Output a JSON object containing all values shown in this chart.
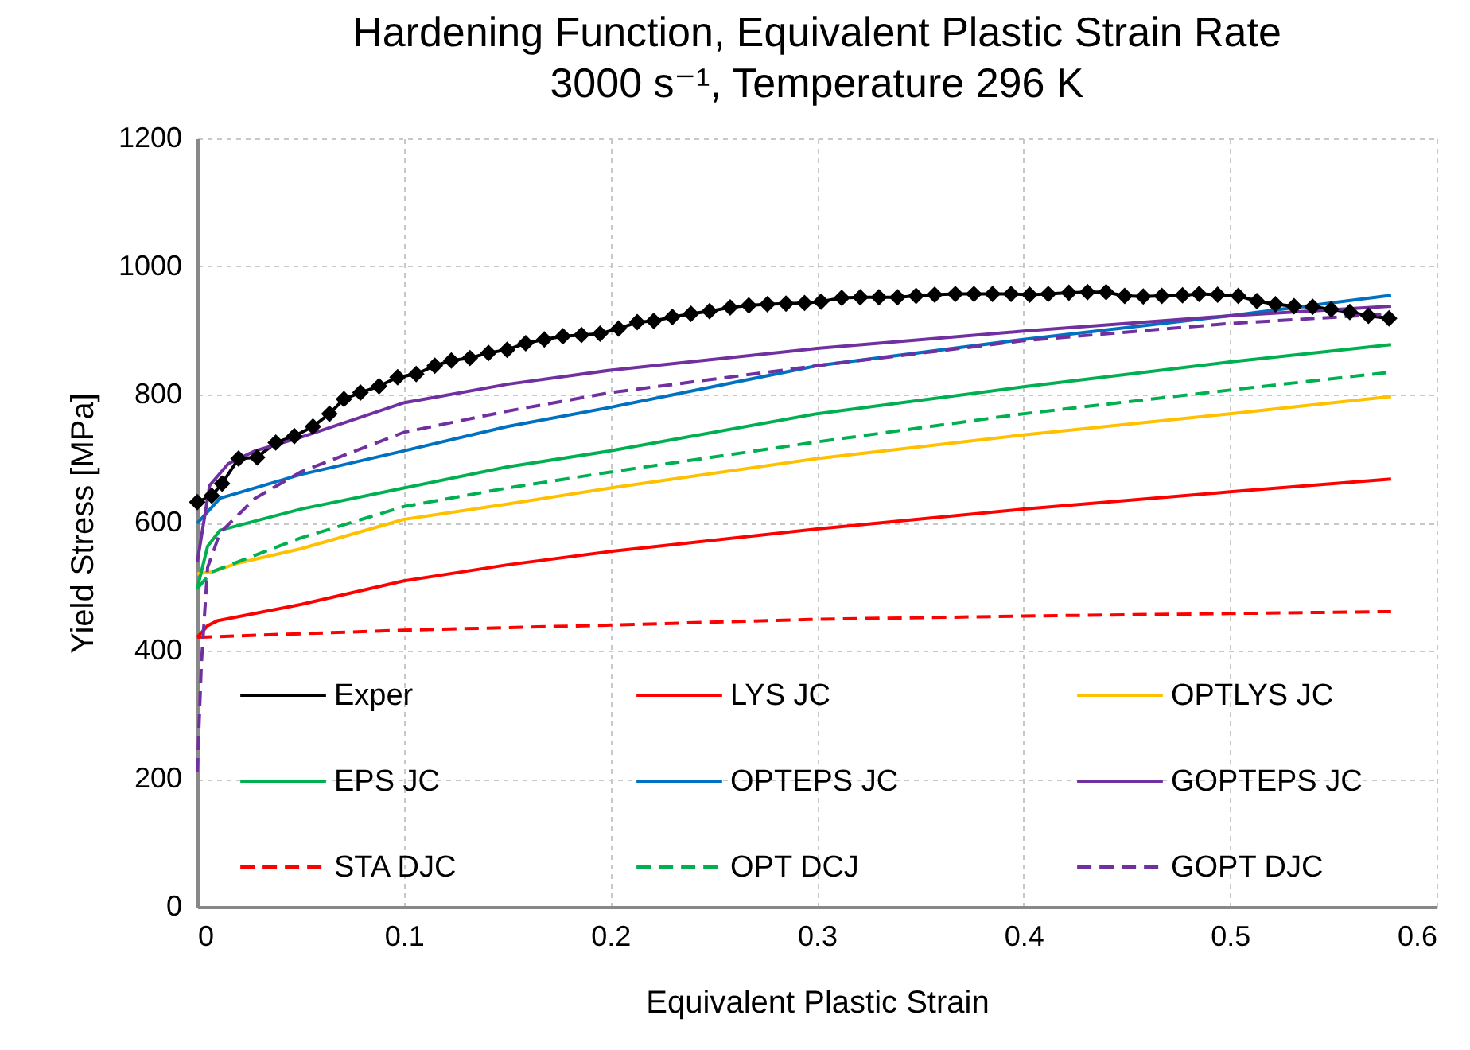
{
  "chart_data": {
    "type": "line",
    "title": "Hardening Function, Equivalent Plastic Strain Rate\n3000 s⁻¹, Temperature 296 K",
    "xlabel": "Equivalent Plastic Strain",
    "ylabel": "Yield Stress [MPa]",
    "xlim": [
      0,
      0.6
    ],
    "xticks": [
      0,
      0.1,
      0.2,
      0.3,
      0.4,
      0.5,
      0.6
    ],
    "ylim": [
      0,
      1200
    ],
    "yticks": [
      0,
      200,
      400,
      600,
      800,
      1000,
      1200
    ],
    "grid": true,
    "legend": "bottom",
    "series": [
      {
        "name": "Exper",
        "color": "#000000",
        "marker": "diamond",
        "line_style": "solid",
        "x": [
          0,
          0.007,
          0.012,
          0.02,
          0.029,
          0.038,
          0.047,
          0.056,
          0.064,
          0.071,
          0.079,
          0.088,
          0.097,
          0.106,
          0.115,
          0.123,
          0.132,
          0.141,
          0.15,
          0.159,
          0.168,
          0.177,
          0.186,
          0.195,
          0.204,
          0.213,
          0.221,
          0.23,
          0.239,
          0.248,
          0.258,
          0.267,
          0.276,
          0.285,
          0.294,
          0.302,
          0.312,
          0.321,
          0.33,
          0.339,
          0.348,
          0.357,
          0.367,
          0.376,
          0.385,
          0.394,
          0.403,
          0.412,
          0.422,
          0.431,
          0.44,
          0.449,
          0.458,
          0.467,
          0.477,
          0.485,
          0.494,
          0.504,
          0.513,
          0.522,
          0.531,
          0.54,
          0.549,
          0.558,
          0.567,
          0.577
        ],
        "values": [
          632,
          642,
          661,
          700,
          702,
          725,
          735,
          750,
          770,
          793,
          803,
          813,
          827,
          832,
          845,
          853,
          857,
          865,
          870,
          880,
          886,
          891,
          893,
          895,
          903,
          913,
          915,
          921,
          926,
          930,
          936,
          939,
          941,
          942,
          943,
          945,
          951,
          952,
          952,
          952,
          954,
          956,
          957,
          957,
          957,
          957,
          956,
          957,
          959,
          960,
          960,
          954,
          953,
          954,
          955,
          957,
          956,
          954,
          946,
          941,
          938,
          937,
          933,
          929,
          923,
          919
        ]
      },
      {
        "name": "LYS JC",
        "color": "#ff0000",
        "line_style": "solid",
        "x": [
          0,
          0.005,
          0.01,
          0.05,
          0.1,
          0.15,
          0.2,
          0.3,
          0.4,
          0.5,
          0.578
        ],
        "values": [
          421,
          439,
          447,
          472,
          509,
          534,
          555,
          590,
          621,
          648,
          668
        ]
      },
      {
        "name": "OPTLYS JC",
        "color": "#ffc000",
        "line_style": "solid",
        "x": [
          0,
          0.007,
          0.02,
          0.05,
          0.1,
          0.15,
          0.2,
          0.3,
          0.4,
          0.5,
          0.578
        ],
        "values": [
          520,
          523,
          537,
          559,
          605,
          629,
          654,
          700,
          737,
          770,
          797
        ]
      },
      {
        "name": "EPS JC",
        "color": "#00b050",
        "line_style": "solid",
        "x": [
          0,
          0.005,
          0.011,
          0.05,
          0.1,
          0.15,
          0.2,
          0.3,
          0.4,
          0.5,
          0.578
        ],
        "values": [
          497,
          563,
          588,
          621,
          654,
          687,
          712,
          770,
          812,
          851,
          878
        ]
      },
      {
        "name": "OPTEPS JC",
        "color": "#0070c0",
        "line_style": "solid",
        "x": [
          0,
          0.011,
          0.05,
          0.1,
          0.15,
          0.2,
          0.3,
          0.4,
          0.5,
          0.578
        ],
        "values": [
          599,
          638,
          675,
          712,
          750,
          780,
          845,
          886,
          923,
          955
        ]
      },
      {
        "name": "GOPTEPS JC",
        "color": "#7030a0",
        "line_style": "solid",
        "x": [
          0,
          0.006,
          0.015,
          0.028,
          0.05,
          0.1,
          0.15,
          0.2,
          0.3,
          0.4,
          0.5,
          0.578
        ],
        "values": [
          538,
          658,
          692,
          712,
          733,
          787,
          816,
          838,
          872,
          899,
          923,
          938
        ]
      },
      {
        "name": "STA DJC",
        "color": "#ff0000",
        "line_style": "dashed",
        "x": [
          0,
          0.1,
          0.2,
          0.3,
          0.4,
          0.5,
          0.578
        ],
        "values": [
          421,
          432,
          440,
          449,
          454,
          458,
          461
        ]
      },
      {
        "name": "OPT DCJ",
        "color": "#00b050",
        "line_style": "dashed",
        "x": [
          0,
          0.007,
          0.05,
          0.1,
          0.15,
          0.2,
          0.3,
          0.4,
          0.5,
          0.578
        ],
        "values": [
          497,
          523,
          576,
          625,
          654,
          679,
          726,
          770,
          807,
          835
        ]
      },
      {
        "name": "GOPT DJC",
        "color": "#7030a0",
        "line_style": "dashed",
        "x": [
          0,
          0.002,
          0.005,
          0.011,
          0.028,
          0.05,
          0.1,
          0.15,
          0.2,
          0.3,
          0.4,
          0.5,
          0.578
        ],
        "values": [
          210,
          380,
          530,
          584,
          638,
          679,
          741,
          774,
          803,
          845,
          884,
          911,
          926
        ]
      }
    ]
  }
}
